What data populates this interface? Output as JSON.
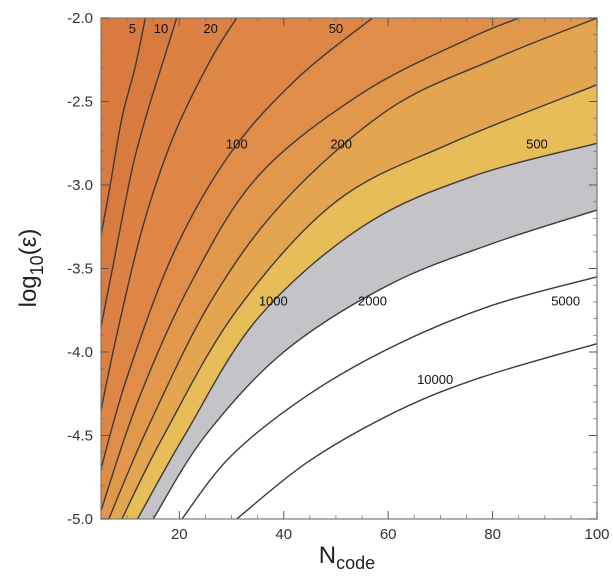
{
  "chart_data": {
    "type": "contour",
    "x": {
      "label_main": "N",
      "label_sub": "code",
      "range": [
        5,
        100
      ],
      "ticks": [
        20,
        40,
        60,
        80,
        100
      ]
    },
    "y": {
      "label_main": "log",
      "label_sub": "10",
      "label_tail": "(ε)",
      "range": [
        -5.0,
        -2.0
      ],
      "ticks": [
        -2.0,
        -2.5,
        -3.0,
        -3.5,
        -4.0,
        -4.5,
        -5.0
      ]
    },
    "tick_labels_x": [
      "20",
      "40",
      "60",
      "80",
      "100"
    ],
    "tick_labels_y": [
      "-2.0",
      "-2.5",
      "-3.0",
      "-3.5",
      "-4.0",
      "-4.5",
      "-5.0"
    ],
    "levels": [
      5,
      10,
      20,
      50,
      100,
      200,
      500,
      1000,
      2000,
      5000,
      10000
    ],
    "band_colors": [
      "#d97a41",
      "#d97a41",
      "#dc8043",
      "#dd8645",
      "#df8d48",
      "#e1984c",
      "#e3a550",
      "#e6bd58",
      "#c3c3c8",
      "#ffffff",
      "#ffffff",
      "#ffffff"
    ],
    "contours": [
      {
        "level": "5",
        "label": "5",
        "points": [
          [
            5.0,
            -3.3
          ],
          [
            6.5,
            -3.05
          ],
          [
            9.0,
            -2.6
          ],
          [
            11.5,
            -2.3
          ],
          [
            13.5,
            -2.0
          ]
        ],
        "label_at": [
          11.0,
          -2.07
        ]
      },
      {
        "level": "10",
        "label": "10",
        "points": [
          [
            5.0,
            -3.85
          ],
          [
            7.5,
            -3.45
          ],
          [
            11.0,
            -2.9
          ],
          [
            14.0,
            -2.55
          ],
          [
            17.0,
            -2.25
          ],
          [
            19.5,
            -2.0
          ]
        ],
        "label_at": [
          16.5,
          -2.07
        ]
      },
      {
        "level": "20",
        "label": "20",
        "points": [
          [
            5.0,
            -4.35
          ],
          [
            8.0,
            -3.9
          ],
          [
            13.0,
            -3.25
          ],
          [
            19.0,
            -2.7
          ],
          [
            26.0,
            -2.25
          ],
          [
            31.0,
            -2.0
          ]
        ],
        "label_at": [
          26.0,
          -2.07
        ]
      },
      {
        "level": "50",
        "label": "50",
        "points": [
          [
            5.0,
            -4.7
          ],
          [
            10.0,
            -4.15
          ],
          [
            19.0,
            -3.4
          ],
          [
            30.0,
            -2.8
          ],
          [
            43.0,
            -2.35
          ],
          [
            57.0,
            -2.0
          ]
        ],
        "label_at": [
          50.0,
          -2.07
        ]
      },
      {
        "level": "100",
        "label": "100",
        "points": [
          [
            5.0,
            -4.95
          ],
          [
            12.0,
            -4.3
          ],
          [
            22.0,
            -3.6
          ],
          [
            35.0,
            -2.95
          ],
          [
            55.0,
            -2.45
          ],
          [
            75.0,
            -2.13
          ],
          [
            85.0,
            -2.0
          ]
        ],
        "label_at": [
          31.0,
          -2.76
        ]
      },
      {
        "level": "200",
        "label": "200",
        "points": [
          [
            6.5,
            -5.0
          ],
          [
            14.0,
            -4.45
          ],
          [
            26.0,
            -3.7
          ],
          [
            40.0,
            -3.1
          ],
          [
            60.0,
            -2.55
          ],
          [
            80.0,
            -2.25
          ],
          [
            100.0,
            -2.0
          ]
        ],
        "label_at": [
          51.0,
          -2.76
        ]
      },
      {
        "level": "500",
        "label": "500",
        "points": [
          [
            9.0,
            -5.0
          ],
          [
            17.0,
            -4.5
          ],
          [
            31.0,
            -3.75
          ],
          [
            50.0,
            -3.1
          ],
          [
            72.0,
            -2.75
          ],
          [
            100.0,
            -2.4
          ]
        ],
        "label_at": [
          88.5,
          -2.76
        ]
      },
      {
        "level": "1000",
        "label": "1000",
        "points": [
          [
            12.0,
            -5.0
          ],
          [
            21.0,
            -4.5
          ],
          [
            35.0,
            -3.8
          ],
          [
            55.0,
            -3.25
          ],
          [
            76.0,
            -2.95
          ],
          [
            100.0,
            -2.75
          ]
        ],
        "label_at": [
          38.0,
          -3.7
        ]
      },
      {
        "level": "2000",
        "label": "2000",
        "points": [
          [
            15.0,
            -5.0
          ],
          [
            25.0,
            -4.5
          ],
          [
            40.0,
            -4.0
          ],
          [
            60.0,
            -3.6
          ],
          [
            80.0,
            -3.35
          ],
          [
            100.0,
            -3.15
          ]
        ],
        "label_at": [
          57.0,
          -3.7
        ]
      },
      {
        "level": "5000",
        "label": "5000",
        "points": [
          [
            20.5,
            -5.0
          ],
          [
            30.0,
            -4.62
          ],
          [
            45.0,
            -4.25
          ],
          [
            62.0,
            -3.95
          ],
          [
            80.0,
            -3.72
          ],
          [
            100.0,
            -3.55
          ]
        ],
        "label_at": [
          94.0,
          -3.7
        ]
      },
      {
        "level": "10000",
        "label": "10000",
        "points": [
          [
            31.0,
            -5.0
          ],
          [
            45.0,
            -4.65
          ],
          [
            62.0,
            -4.35
          ],
          [
            78.0,
            -4.15
          ],
          [
            100.0,
            -3.95
          ]
        ],
        "label_at": [
          69.0,
          -4.17
        ]
      }
    ]
  }
}
